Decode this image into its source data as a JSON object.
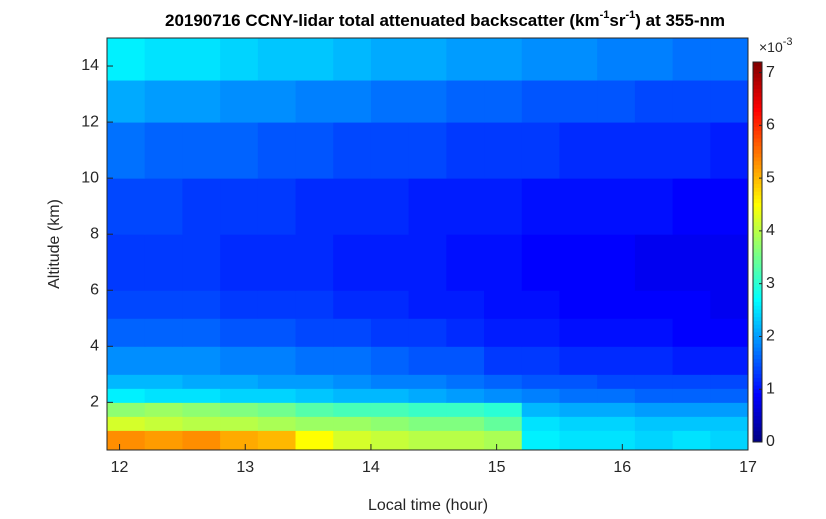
{
  "chart_data": {
    "type": "heatmap",
    "title_parts": [
      "20190716 CCNY-lidar total attenuated backscatter (km",
      "-1",
      "sr",
      "-1",
      ") at 355-nm"
    ],
    "x_label": "Local time (hour)",
    "y_label": "Altitude (km)",
    "colormap": "jet",
    "x_bins": [
      11.9,
      12.2,
      12.5,
      12.8,
      13.1,
      13.4,
      13.7,
      14.0,
      14.3,
      14.6,
      14.9,
      15.2,
      15.5,
      15.8,
      16.1,
      16.4,
      16.7,
      17.0
    ],
    "y_bins": [
      0.3,
      1.0,
      1.5,
      2.0,
      2.5,
      3,
      4,
      5,
      6,
      8,
      10,
      12,
      13.5,
      15
    ],
    "values": [
      [
        5.3,
        5.2,
        5.3,
        5.1,
        5.0,
        4.5,
        4.2,
        4.1,
        4.0,
        4.0,
        3.9,
        2.6,
        2.5,
        2.5,
        2.4,
        2.5,
        2.4
      ],
      [
        4.2,
        4.1,
        4.0,
        4.0,
        3.9,
        3.8,
        3.8,
        3.7,
        3.6,
        3.6,
        3.4,
        2.5,
        2.4,
        2.4,
        2.3,
        2.3,
        2.3
      ],
      [
        3.7,
        3.8,
        3.7,
        3.6,
        3.5,
        3.3,
        3.2,
        3.2,
        3.1,
        3.1,
        3.0,
        2.2,
        2.1,
        2.1,
        2.0,
        2.0,
        2.0
      ],
      [
        2.6,
        2.5,
        2.5,
        2.4,
        2.4,
        2.3,
        2.2,
        2.2,
        2.1,
        2.0,
        1.9,
        1.8,
        1.7,
        1.7,
        1.6,
        1.6,
        1.6
      ],
      [
        2.2,
        2.2,
        2.1,
        2.1,
        2.0,
        2.0,
        1.9,
        1.8,
        1.8,
        1.7,
        1.6,
        1.5,
        1.5,
        1.4,
        1.4,
        1.4,
        1.4
      ],
      [
        1.9,
        1.9,
        1.9,
        1.8,
        1.8,
        1.7,
        1.7,
        1.6,
        1.5,
        1.5,
        1.3,
        1.3,
        1.2,
        1.2,
        1.2,
        1.1,
        1.1
      ],
      [
        1.6,
        1.6,
        1.6,
        1.5,
        1.5,
        1.4,
        1.4,
        1.3,
        1.3,
        1.2,
        1.1,
        1.1,
        1.0,
        1.0,
        1.0,
        0.9,
        0.9
      ],
      [
        1.4,
        1.4,
        1.4,
        1.3,
        1.3,
        1.3,
        1.2,
        1.2,
        1.1,
        1.1,
        1.0,
        1.0,
        0.9,
        0.9,
        0.9,
        0.9,
        0.8
      ],
      [
        1.3,
        1.3,
        1.3,
        1.2,
        1.2,
        1.2,
        1.1,
        1.1,
        1.1,
        1.0,
        1.0,
        0.9,
        0.9,
        0.9,
        0.8,
        0.8,
        0.8
      ],
      [
        1.4,
        1.4,
        1.3,
        1.3,
        1.3,
        1.2,
        1.2,
        1.2,
        1.1,
        1.1,
        1.1,
        1.0,
        1.0,
        1.0,
        1.0,
        0.9,
        0.9
      ],
      [
        1.7,
        1.6,
        1.6,
        1.6,
        1.5,
        1.5,
        1.4,
        1.4,
        1.4,
        1.3,
        1.3,
        1.3,
        1.2,
        1.2,
        1.2,
        1.2,
        1.1
      ],
      [
        2.1,
        2.0,
        2.0,
        1.9,
        1.9,
        1.8,
        1.8,
        1.7,
        1.7,
        1.6,
        1.6,
        1.5,
        1.5,
        1.5,
        1.4,
        1.4,
        1.4
      ],
      [
        2.6,
        2.5,
        2.5,
        2.4,
        2.3,
        2.3,
        2.2,
        2.1,
        2.1,
        2.0,
        2.0,
        1.9,
        1.9,
        1.8,
        1.8,
        1.7,
        1.7
      ]
    ],
    "xlim": [
      11.9,
      17.0
    ],
    "ylim": [
      0.3,
      15
    ],
    "xticks": [
      12,
      13,
      14,
      15,
      16,
      17
    ],
    "yticks": [
      2,
      4,
      6,
      8,
      10,
      12,
      14
    ],
    "clim": [
      0,
      7.2
    ],
    "cticks": [
      0,
      1,
      2,
      3,
      4,
      5,
      6,
      7
    ],
    "c_multiplier": [
      "×10",
      "-3"
    ]
  }
}
